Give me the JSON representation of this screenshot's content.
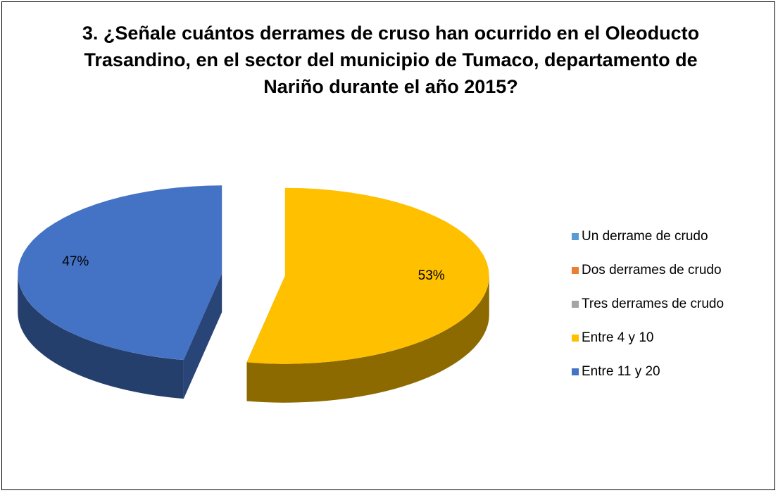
{
  "chart_data": {
    "type": "pie",
    "title": "3. ¿Señale cuántos derrames de cruso han ocurrido en el Oleoducto Trasandino, en el sector del municipio de Tumaco, departamento de Nariño durante el año 2015?",
    "categories": [
      "Un derrame de crudo",
      "Dos derrames de crudo",
      "Tres derrames de crudo",
      "Entre 4 y 10",
      "Entre 11 y 20"
    ],
    "values": [
      0,
      0,
      0,
      53,
      47
    ],
    "value_labels": [
      null,
      null,
      null,
      "53%",
      "47%"
    ],
    "colors": [
      "#5b9bd5",
      "#ed7d31",
      "#a5a5a5",
      "#ffc000",
      "#4472c4"
    ],
    "legend": "right"
  }
}
